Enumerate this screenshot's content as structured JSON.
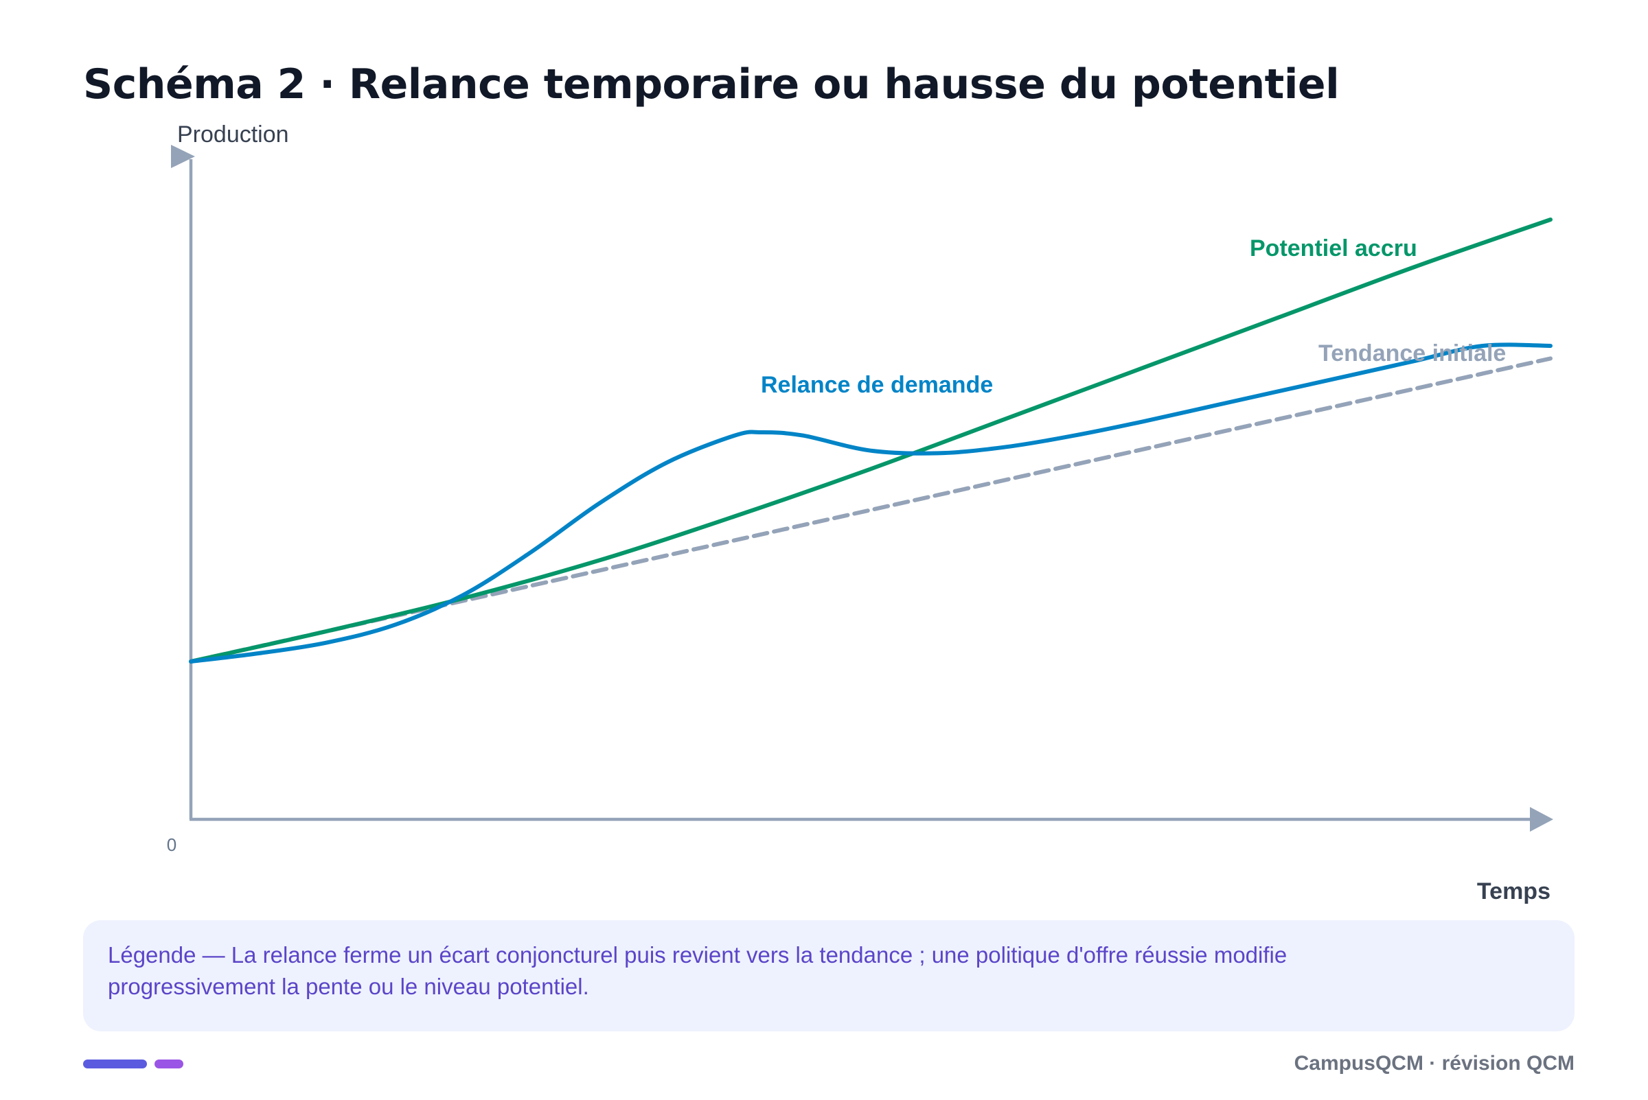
{
  "chart_data": {
    "type": "line",
    "title": "Schéma 2 · Relance temporaire ou hausse du potentiel",
    "xlabel": "Temps",
    "ylabel": "Production",
    "origin_label": "0",
    "xlim": [
      0,
      100
    ],
    "ylim": [
      0,
      100
    ],
    "grid": false,
    "series": [
      {
        "name": "Tendance initiale",
        "color": "#94a3b8",
        "dashed": true,
        "x": [
          0,
          100
        ],
        "y": [
          25,
          73
        ]
      },
      {
        "name": "Potentiel accru",
        "color": "#059669",
        "dashed": false,
        "x": [
          0,
          10,
          20,
          30,
          40,
          50,
          60,
          70,
          80,
          90,
          100
        ],
        "y": [
          25,
          29.8,
          35,
          41,
          48,
          55.5,
          63.5,
          71.5,
          79.5,
          87.5,
          95
        ]
      },
      {
        "name": "Relance de demande",
        "color": "#0284c7",
        "dashed": false,
        "x": [
          0,
          5,
          10,
          15,
          20,
          25,
          30,
          35,
          40,
          42,
          45,
          50,
          55,
          60,
          65,
          70,
          75,
          80,
          85,
          90,
          95,
          100
        ],
        "y": [
          25,
          26.3,
          28,
          30.8,
          35.5,
          42.3,
          50,
          56.5,
          60.8,
          61.3,
          60.8,
          58.4,
          58,
          59,
          60.8,
          63,
          65.4,
          67.8,
          70.2,
          72.6,
          75,
          75
        ]
      }
    ]
  },
  "legend_note": "Légende — La relance ferme un écart conjoncturel puis revient vers la tendance ; une politique d'offre réussie modifie progressivement la pente ou le niveau potentiel.",
  "footer": {
    "brand": "CampusQCM · révision QCM",
    "accent_colors": [
      "#5b5be0",
      "#9a55e6"
    ]
  }
}
